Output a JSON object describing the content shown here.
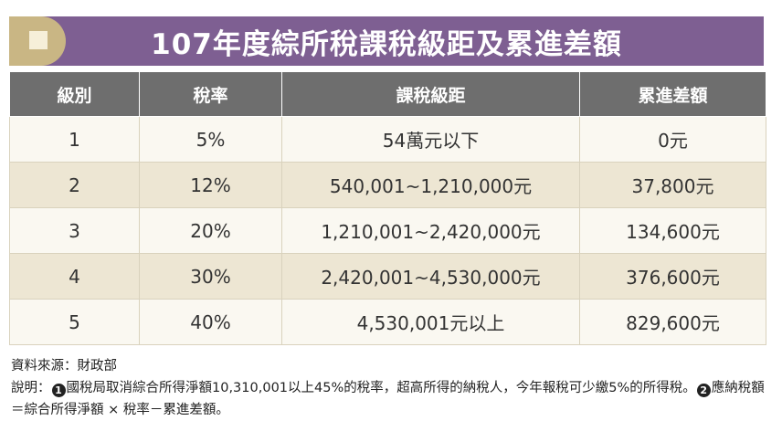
{
  "title": "107年度綜所稅課稅級距及累進差額",
  "columns": [
    "級別",
    "稅率",
    "課稅級距",
    "累進差額"
  ],
  "rows": [
    {
      "level": "1",
      "rate": "5%",
      "bracket": "54萬元以下",
      "deduction": "0元"
    },
    {
      "level": "2",
      "rate": "12%",
      "bracket": "540,001~1,210,000元",
      "deduction": "37,800元"
    },
    {
      "level": "3",
      "rate": "20%",
      "bracket": "1,210,001~2,420,000元",
      "deduction": "134,600元"
    },
    {
      "level": "4",
      "rate": "30%",
      "bracket": "2,420,001~4,530,000元",
      "deduction": "376,600元"
    },
    {
      "level": "5",
      "rate": "40%",
      "bracket": "4,530,001元以上",
      "deduction": "829,600元"
    }
  ],
  "notes": {
    "source": "資料來源：財政部",
    "explain_prefix": "說明：",
    "mark1": "1",
    "note1": "國稅局取消綜合所得淨額10,310,001以上45%的稅率，超高所得的納稅人，今年報稅可少繳5%的所得稅。",
    "mark2": "2",
    "note2": "應納稅額＝綜合所得淨額 × 稅率－累進差額。"
  },
  "colors": {
    "banner": "#7e5f92",
    "banner_accent": "#c9b684",
    "header": "#6e6e6e",
    "row_light": "#faf8f1",
    "row_dark": "#ede6d3"
  }
}
